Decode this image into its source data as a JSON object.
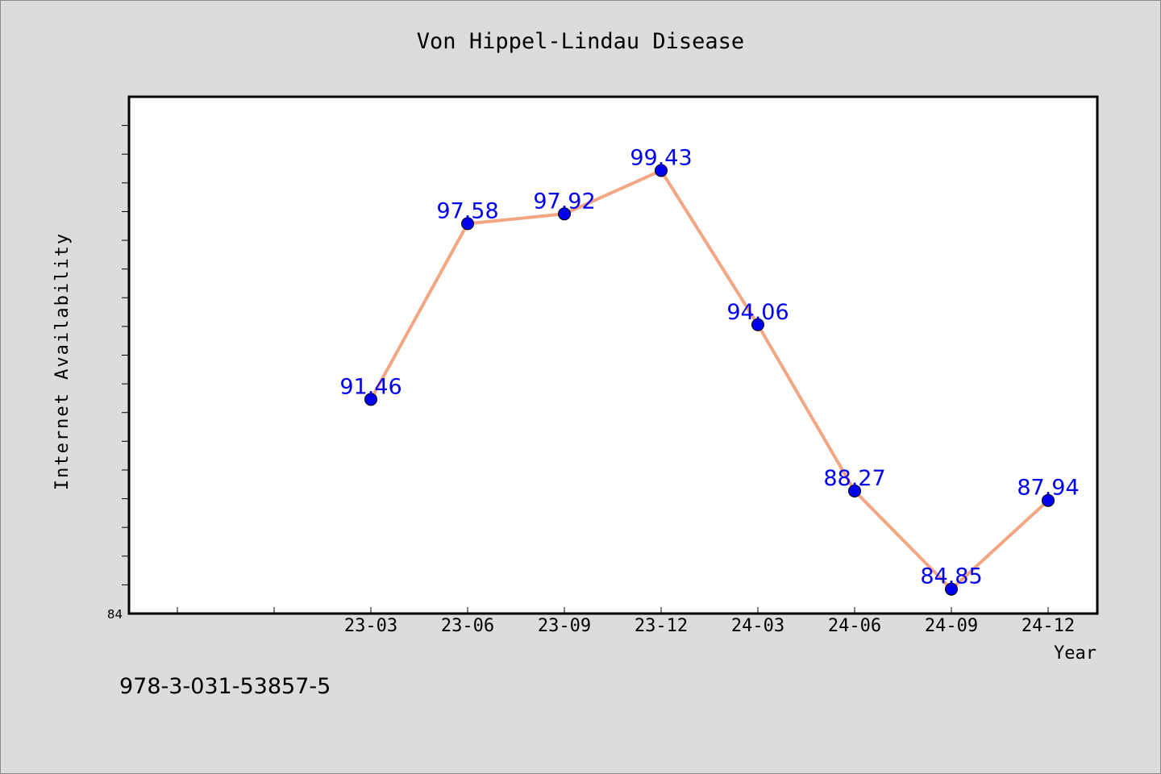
{
  "chart_data": {
    "type": "line",
    "title": "Von Hippel-Lindau Disease",
    "xlabel": "Year",
    "ylabel": "Internet Availability",
    "categories": [
      "23-03",
      "23-06",
      "23-09",
      "23-12",
      "24-03",
      "24-06",
      "24-09",
      "24-12"
    ],
    "values": [
      91.46,
      97.58,
      97.92,
      99.43,
      94.06,
      88.27,
      84.85,
      87.94
    ],
    "ylim": [
      84,
      102
    ],
    "y_tick_labels": [
      "84"
    ],
    "grid": false,
    "line_color": "#f4a582",
    "marker_color": "#0000ee",
    "label_color": "#0000ee",
    "background_color": "#dcdcdc",
    "plot_background": "#ffffff"
  },
  "footer_note": "978-3-031-53857-5"
}
